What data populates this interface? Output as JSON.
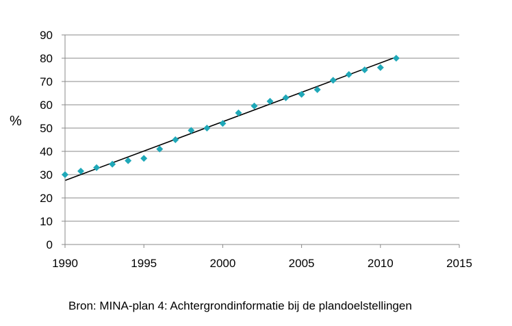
{
  "chart_data": {
    "type": "scatter",
    "ylabel": "%",
    "xlabel": "",
    "xlim": [
      1990,
      2015
    ],
    "ylim": [
      0,
      90
    ],
    "xticks": [
      1990,
      1995,
      2000,
      2005,
      2010,
      2015
    ],
    "yticks": [
      0,
      10,
      20,
      30,
      40,
      50,
      60,
      70,
      80,
      90
    ],
    "grid": "horizontal",
    "legend": "none",
    "series": [
      {
        "marker": "diamond",
        "color": "#1fa8b8",
        "points": [
          {
            "x": 1990,
            "y": 30
          },
          {
            "x": 1991,
            "y": 31.5
          },
          {
            "x": 1992,
            "y": 33
          },
          {
            "x": 1993,
            "y": 34.5
          },
          {
            "x": 1994,
            "y": 36
          },
          {
            "x": 1995,
            "y": 37
          },
          {
            "x": 1996,
            "y": 41
          },
          {
            "x": 1997,
            "y": 45
          },
          {
            "x": 1998,
            "y": 49
          },
          {
            "x": 1999,
            "y": 50
          },
          {
            "x": 2000,
            "y": 52
          },
          {
            "x": 2001,
            "y": 56.5
          },
          {
            "x": 2002,
            "y": 59.5
          },
          {
            "x": 2003,
            "y": 61.5
          },
          {
            "x": 2004,
            "y": 63
          },
          {
            "x": 2005,
            "y": 64.5
          },
          {
            "x": 2006,
            "y": 66.5
          },
          {
            "x": 2007,
            "y": 70.5
          },
          {
            "x": 2008,
            "y": 73
          },
          {
            "x": 2009,
            "y": 75
          },
          {
            "x": 2010,
            "y": 76
          },
          {
            "x": 2011,
            "y": 80
          }
        ]
      }
    ],
    "trendline": {
      "type": "linear",
      "color": "#000000",
      "from": {
        "x": 1990,
        "y": 27.5
      },
      "to": {
        "x": 2011,
        "y": 80.5
      }
    },
    "source": "Bron: MINA-plan 4: Achtergrondinformatie bij de plandoelstellingen"
  }
}
